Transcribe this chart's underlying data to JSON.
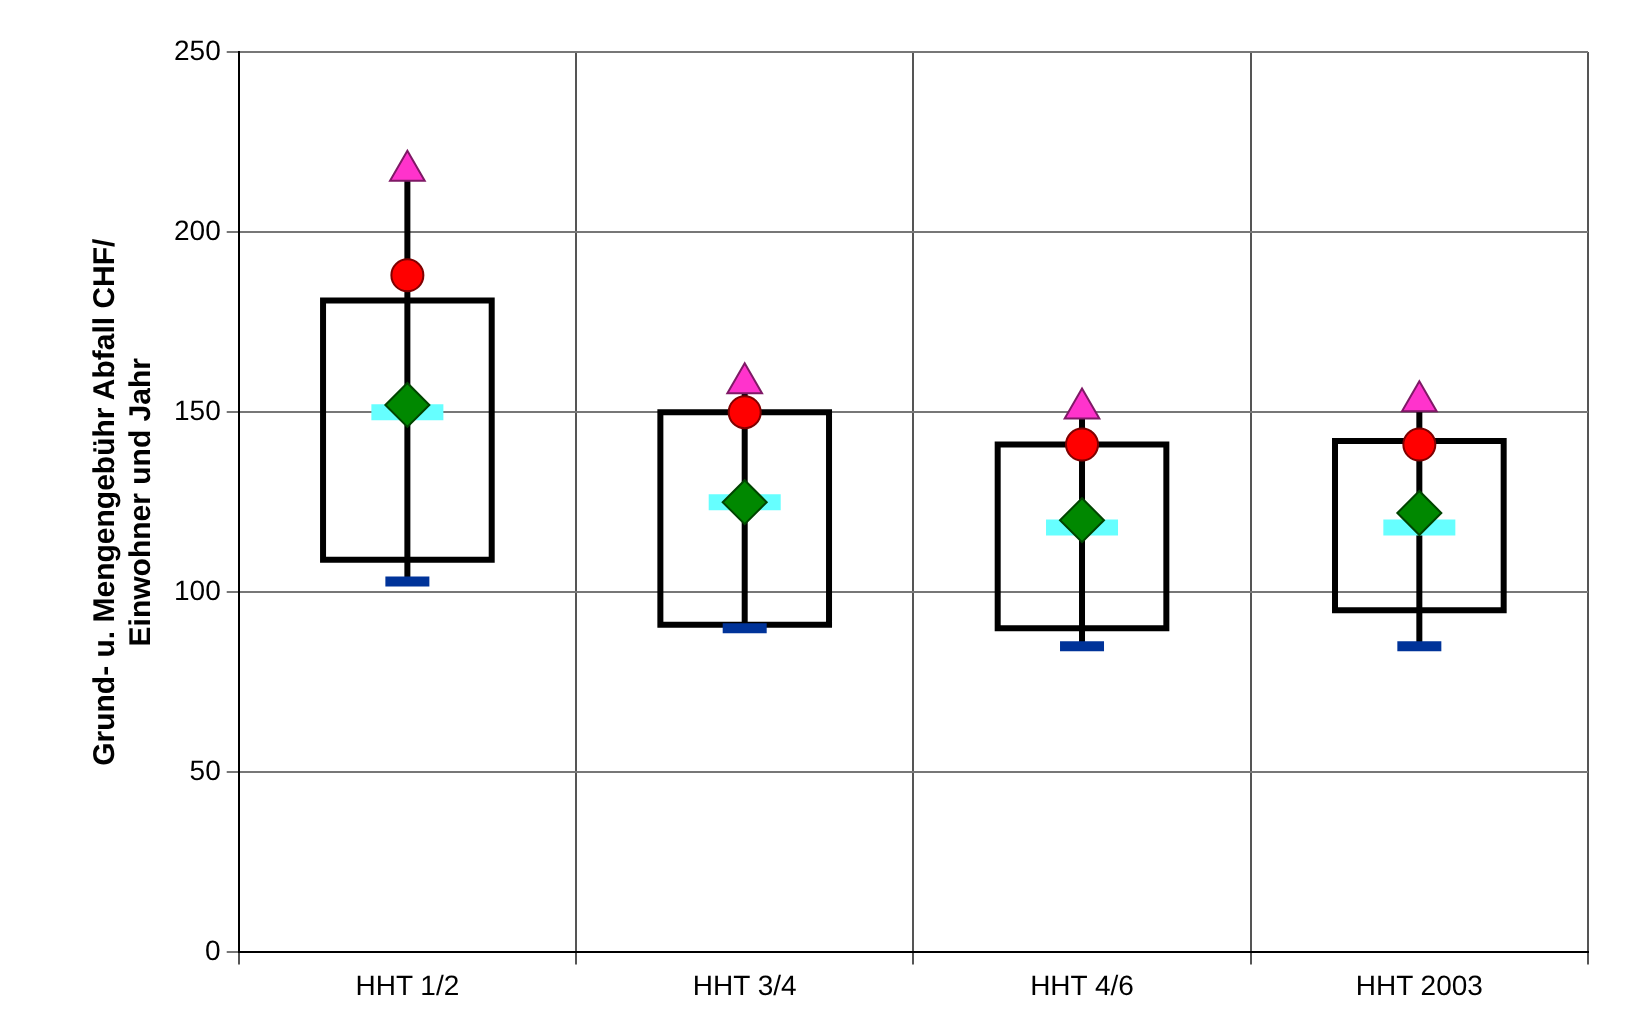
{
  "chart_data": {
    "type": "box",
    "ylabel": "Grund- u. Mengengebühr Abfall CHF/\nEinwohner und Jahr",
    "categories": [
      "HHT 1/2",
      "HHT 3/4",
      "HHT 4/6",
      "HHT 2003"
    ],
    "ylim": [
      0,
      250
    ],
    "yticks": [
      0,
      50,
      100,
      150,
      200,
      250
    ],
    "grid": true,
    "legend": false,
    "series": [
      {
        "type": "box",
        "color": "#000000",
        "boxes": [
          {
            "low": 103,
            "q1": 109,
            "median": 150,
            "q3": 181,
            "high": 217,
            "mean": 152
          },
          {
            "low": 90,
            "q1": 91,
            "median": 125,
            "q3": 150,
            "high": 158,
            "mean": 125
          },
          {
            "low": 85,
            "q1": 90,
            "median": 118,
            "q3": 141,
            "high": 151,
            "mean": 120
          },
          {
            "low": 85,
            "q1": 95,
            "median": 118,
            "q3": 142,
            "high": 153,
            "mean": 122
          }
        ]
      },
      {
        "type": "scatter",
        "color": "#ff33cc",
        "marker": "triangle",
        "x": [
          "HHT 1/2",
          "HHT 3/4",
          "HHT 4/6",
          "HHT 2003"
        ],
        "values": [
          217,
          158,
          151,
          153
        ]
      },
      {
        "type": "scatter",
        "color": "#ff0000",
        "marker": "circle",
        "x": [
          "HHT 1/2",
          "HHT 3/4",
          "HHT 4/6",
          "HHT 2003"
        ],
        "values": [
          188,
          150,
          141,
          141
        ]
      }
    ]
  }
}
